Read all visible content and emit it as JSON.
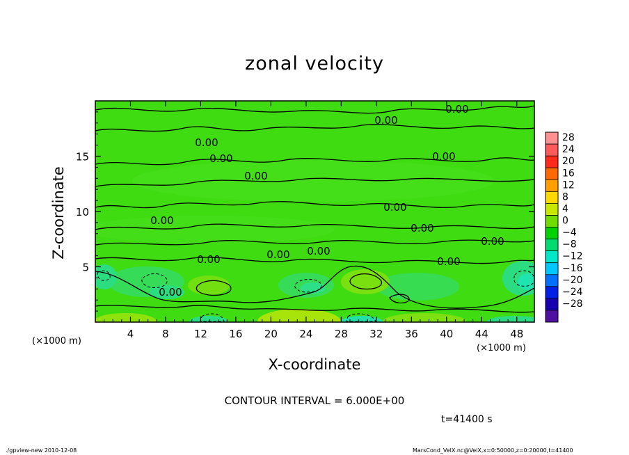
{
  "chart_data": {
    "type": "heatmap",
    "title": "zonal velocity",
    "xlabel": "X-coordinate",
    "ylabel": "Z-coordinate",
    "x_unit": "(×1000 m)",
    "xlim": [
      0,
      50
    ],
    "ylim": [
      0,
      20
    ],
    "x_ticks": [
      "4",
      "8",
      "12",
      "16",
      "20",
      "24",
      "28",
      "32",
      "36",
      "40",
      "44",
      "48"
    ],
    "y_ticks": [
      "5",
      "10",
      "15"
    ],
    "colorbar": {
      "labels": [
        "28",
        "24",
        "20",
        "16",
        "12",
        "8",
        "4",
        "0",
        "−4",
        "−8",
        "−12",
        "−16",
        "−20",
        "−24",
        "−28"
      ],
      "colors": [
        "#ff9090",
        "#ff5a5a",
        "#ff2a1a",
        "#ff6a00",
        "#ffa000",
        "#ffd800",
        "#c8e800",
        "#70dc00",
        "#00d200",
        "#00dc70",
        "#00e8c8",
        "#00c8ff",
        "#0070ff",
        "#0020e8",
        "#1800b0",
        "#5010a0"
      ]
    },
    "contour_labels": [
      "0.00",
      "0.00",
      "0.00",
      "0.00",
      "0.00",
      "0.00",
      "0.00",
      "0.00",
      "0.00",
      "0.00",
      "0.00",
      "0.00",
      "0.00",
      "0.00",
      "0.00"
    ],
    "contour_interval": "CONTOUR INTERVAL = 6.000E+00",
    "time": "t=41400 s"
  },
  "footer": {
    "left": "./gpview-new  2010-12-08",
    "right": "MarsCond_VelX.nc@VelX,x=0:50000,z=0:20000,t=41400"
  }
}
